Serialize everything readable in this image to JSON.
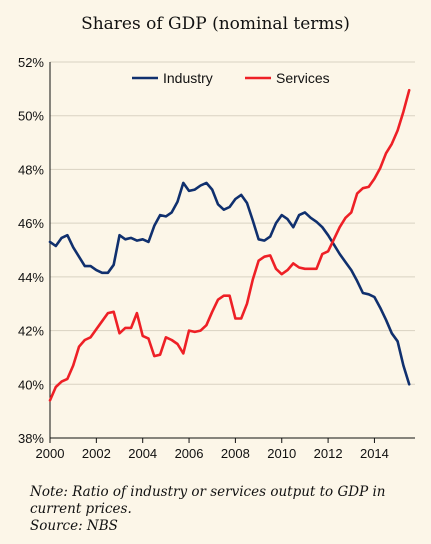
{
  "title": "Shares of GDP (nominal terms)",
  "note": "Note: Ratio of industry or services output to GDP in current prices.",
  "source": "Source: NBS",
  "colors": {
    "industry": "#10306e",
    "services": "#ee2026",
    "grid": "#d9d2c2",
    "background": "#fcf6e8"
  },
  "chart_data": {
    "type": "line",
    "title": "Shares of GDP (nominal terms)",
    "xlabel": "",
    "ylabel": "",
    "xlim": [
      2000,
      2015.75
    ],
    "ylim": [
      38,
      52
    ],
    "x_ticks": [
      2000,
      2002,
      2004,
      2006,
      2008,
      2010,
      2012,
      2014
    ],
    "y_ticks": [
      38,
      40,
      42,
      44,
      46,
      48,
      50,
      52
    ],
    "y_tick_labels": [
      "38%",
      "40%",
      "42%",
      "44%",
      "46%",
      "48%",
      "50%",
      "52%"
    ],
    "grid": "horizontal",
    "legend_position": "top",
    "series": [
      {
        "name": "Industry",
        "color": "#10306e",
        "points": [
          [
            2000.0,
            45.3
          ],
          [
            2000.25,
            45.15
          ],
          [
            2000.5,
            45.45
          ],
          [
            2000.75,
            45.55
          ],
          [
            2001.0,
            45.1
          ],
          [
            2001.25,
            44.75
          ],
          [
            2001.5,
            44.4
          ],
          [
            2001.75,
            44.4
          ],
          [
            2002.0,
            44.25
          ],
          [
            2002.25,
            44.15
          ],
          [
            2002.5,
            44.15
          ],
          [
            2002.75,
            44.45
          ],
          [
            2003.0,
            45.55
          ],
          [
            2003.25,
            45.4
          ],
          [
            2003.5,
            45.45
          ],
          [
            2003.75,
            45.35
          ],
          [
            2004.0,
            45.4
          ],
          [
            2004.25,
            45.3
          ],
          [
            2004.5,
            45.9
          ],
          [
            2004.75,
            46.3
          ],
          [
            2005.0,
            46.25
          ],
          [
            2005.25,
            46.4
          ],
          [
            2005.5,
            46.8
          ],
          [
            2005.75,
            47.5
          ],
          [
            2006.0,
            47.2
          ],
          [
            2006.25,
            47.25
          ],
          [
            2006.5,
            47.4
          ],
          [
            2006.75,
            47.5
          ],
          [
            2007.0,
            47.25
          ],
          [
            2007.25,
            46.7
          ],
          [
            2007.5,
            46.5
          ],
          [
            2007.75,
            46.6
          ],
          [
            2008.0,
            46.9
          ],
          [
            2008.25,
            47.05
          ],
          [
            2008.5,
            46.75
          ],
          [
            2008.75,
            46.1
          ],
          [
            2009.0,
            45.4
          ],
          [
            2009.25,
            45.35
          ],
          [
            2009.5,
            45.5
          ],
          [
            2009.75,
            46.0
          ],
          [
            2010.0,
            46.3
          ],
          [
            2010.25,
            46.15
          ],
          [
            2010.5,
            45.85
          ],
          [
            2010.75,
            46.3
          ],
          [
            2011.0,
            46.4
          ],
          [
            2011.25,
            46.2
          ],
          [
            2011.5,
            46.05
          ],
          [
            2011.75,
            45.85
          ],
          [
            2012.0,
            45.55
          ],
          [
            2012.25,
            45.2
          ],
          [
            2012.5,
            44.85
          ],
          [
            2012.75,
            44.55
          ],
          [
            2013.0,
            44.25
          ],
          [
            2013.25,
            43.85
          ],
          [
            2013.5,
            43.4
          ],
          [
            2013.75,
            43.35
          ],
          [
            2014.0,
            43.25
          ],
          [
            2014.25,
            42.85
          ],
          [
            2014.5,
            42.4
          ],
          [
            2014.75,
            41.9
          ],
          [
            2015.0,
            41.6
          ],
          [
            2015.25,
            40.7
          ],
          [
            2015.5,
            40.0
          ]
        ]
      },
      {
        "name": "Services",
        "color": "#ee2026",
        "points": [
          [
            2000.0,
            39.4
          ],
          [
            2000.25,
            39.9
          ],
          [
            2000.5,
            40.1
          ],
          [
            2000.75,
            40.2
          ],
          [
            2001.0,
            40.7
          ],
          [
            2001.25,
            41.4
          ],
          [
            2001.5,
            41.65
          ],
          [
            2001.75,
            41.75
          ],
          [
            2002.0,
            42.05
          ],
          [
            2002.25,
            42.35
          ],
          [
            2002.5,
            42.65
          ],
          [
            2002.75,
            42.7
          ],
          [
            2003.0,
            41.9
          ],
          [
            2003.25,
            42.1
          ],
          [
            2003.5,
            42.1
          ],
          [
            2003.75,
            42.65
          ],
          [
            2004.0,
            41.8
          ],
          [
            2004.25,
            41.7
          ],
          [
            2004.5,
            41.05
          ],
          [
            2004.75,
            41.1
          ],
          [
            2005.0,
            41.75
          ],
          [
            2005.25,
            41.65
          ],
          [
            2005.5,
            41.5
          ],
          [
            2005.75,
            41.15
          ],
          [
            2006.0,
            42.0
          ],
          [
            2006.25,
            41.95
          ],
          [
            2006.5,
            42.0
          ],
          [
            2006.75,
            42.2
          ],
          [
            2007.0,
            42.7
          ],
          [
            2007.25,
            43.15
          ],
          [
            2007.5,
            43.3
          ],
          [
            2007.75,
            43.3
          ],
          [
            2008.0,
            42.45
          ],
          [
            2008.25,
            42.45
          ],
          [
            2008.5,
            43.0
          ],
          [
            2008.75,
            43.9
          ],
          [
            2009.0,
            44.6
          ],
          [
            2009.25,
            44.75
          ],
          [
            2009.5,
            44.8
          ],
          [
            2009.75,
            44.3
          ],
          [
            2010.0,
            44.1
          ],
          [
            2010.25,
            44.25
          ],
          [
            2010.5,
            44.5
          ],
          [
            2010.75,
            44.35
          ],
          [
            2011.0,
            44.3
          ],
          [
            2011.25,
            44.3
          ],
          [
            2011.5,
            44.3
          ],
          [
            2011.75,
            44.85
          ],
          [
            2012.0,
            44.95
          ],
          [
            2012.25,
            45.4
          ],
          [
            2012.5,
            45.85
          ],
          [
            2012.75,
            46.2
          ],
          [
            2013.0,
            46.4
          ],
          [
            2013.25,
            47.1
          ],
          [
            2013.5,
            47.3
          ],
          [
            2013.75,
            47.35
          ],
          [
            2014.0,
            47.65
          ],
          [
            2014.25,
            48.05
          ],
          [
            2014.5,
            48.6
          ],
          [
            2014.75,
            48.95
          ],
          [
            2015.0,
            49.45
          ],
          [
            2015.25,
            50.15
          ],
          [
            2015.5,
            50.95
          ]
        ]
      }
    ]
  }
}
